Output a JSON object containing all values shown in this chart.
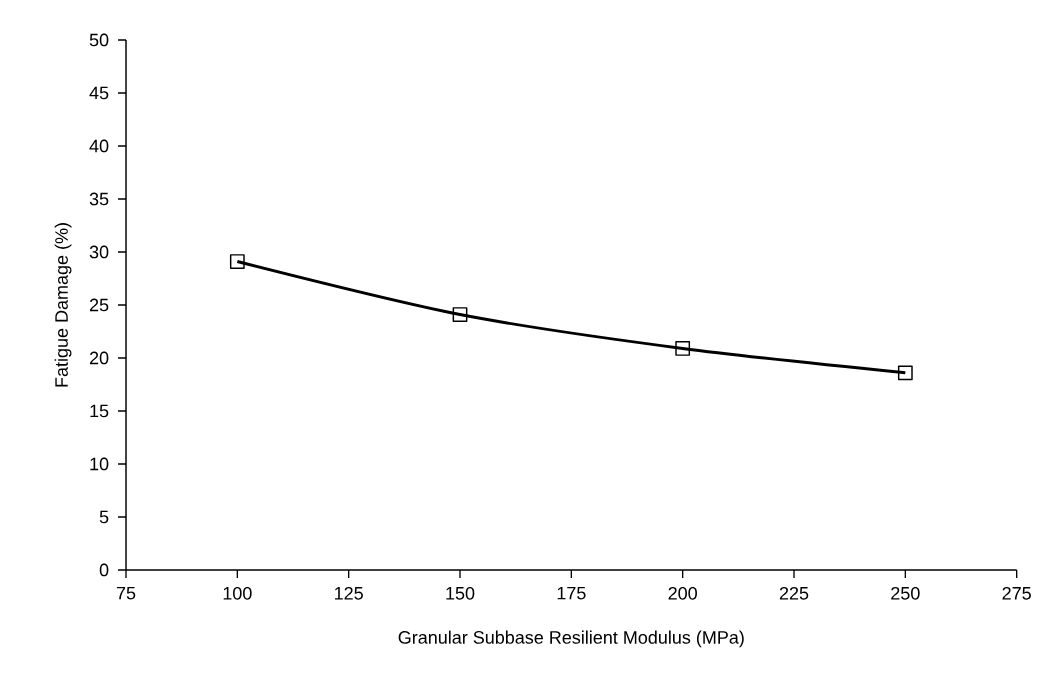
{
  "chart_data": {
    "type": "line",
    "xlabel": "Granular Subbase Resilient Modulus (MPa)",
    "ylabel": "Fatigue Damage (%)",
    "x": [
      100,
      150,
      200,
      250
    ],
    "series": [
      {
        "color": "#000000",
        "values": [
          29.1,
          24.1,
          20.9,
          18.6
        ]
      }
    ],
    "xlim": [
      75,
      275
    ],
    "xticks": [
      75,
      100,
      125,
      150,
      175,
      200,
      225,
      250,
      275
    ],
    "ylim": [
      0,
      50
    ],
    "yticks": [
      0,
      5,
      10,
      15,
      20,
      25,
      30,
      35,
      40,
      45,
      50
    ],
    "marker": "square",
    "line_style": "solid",
    "grid": false
  }
}
